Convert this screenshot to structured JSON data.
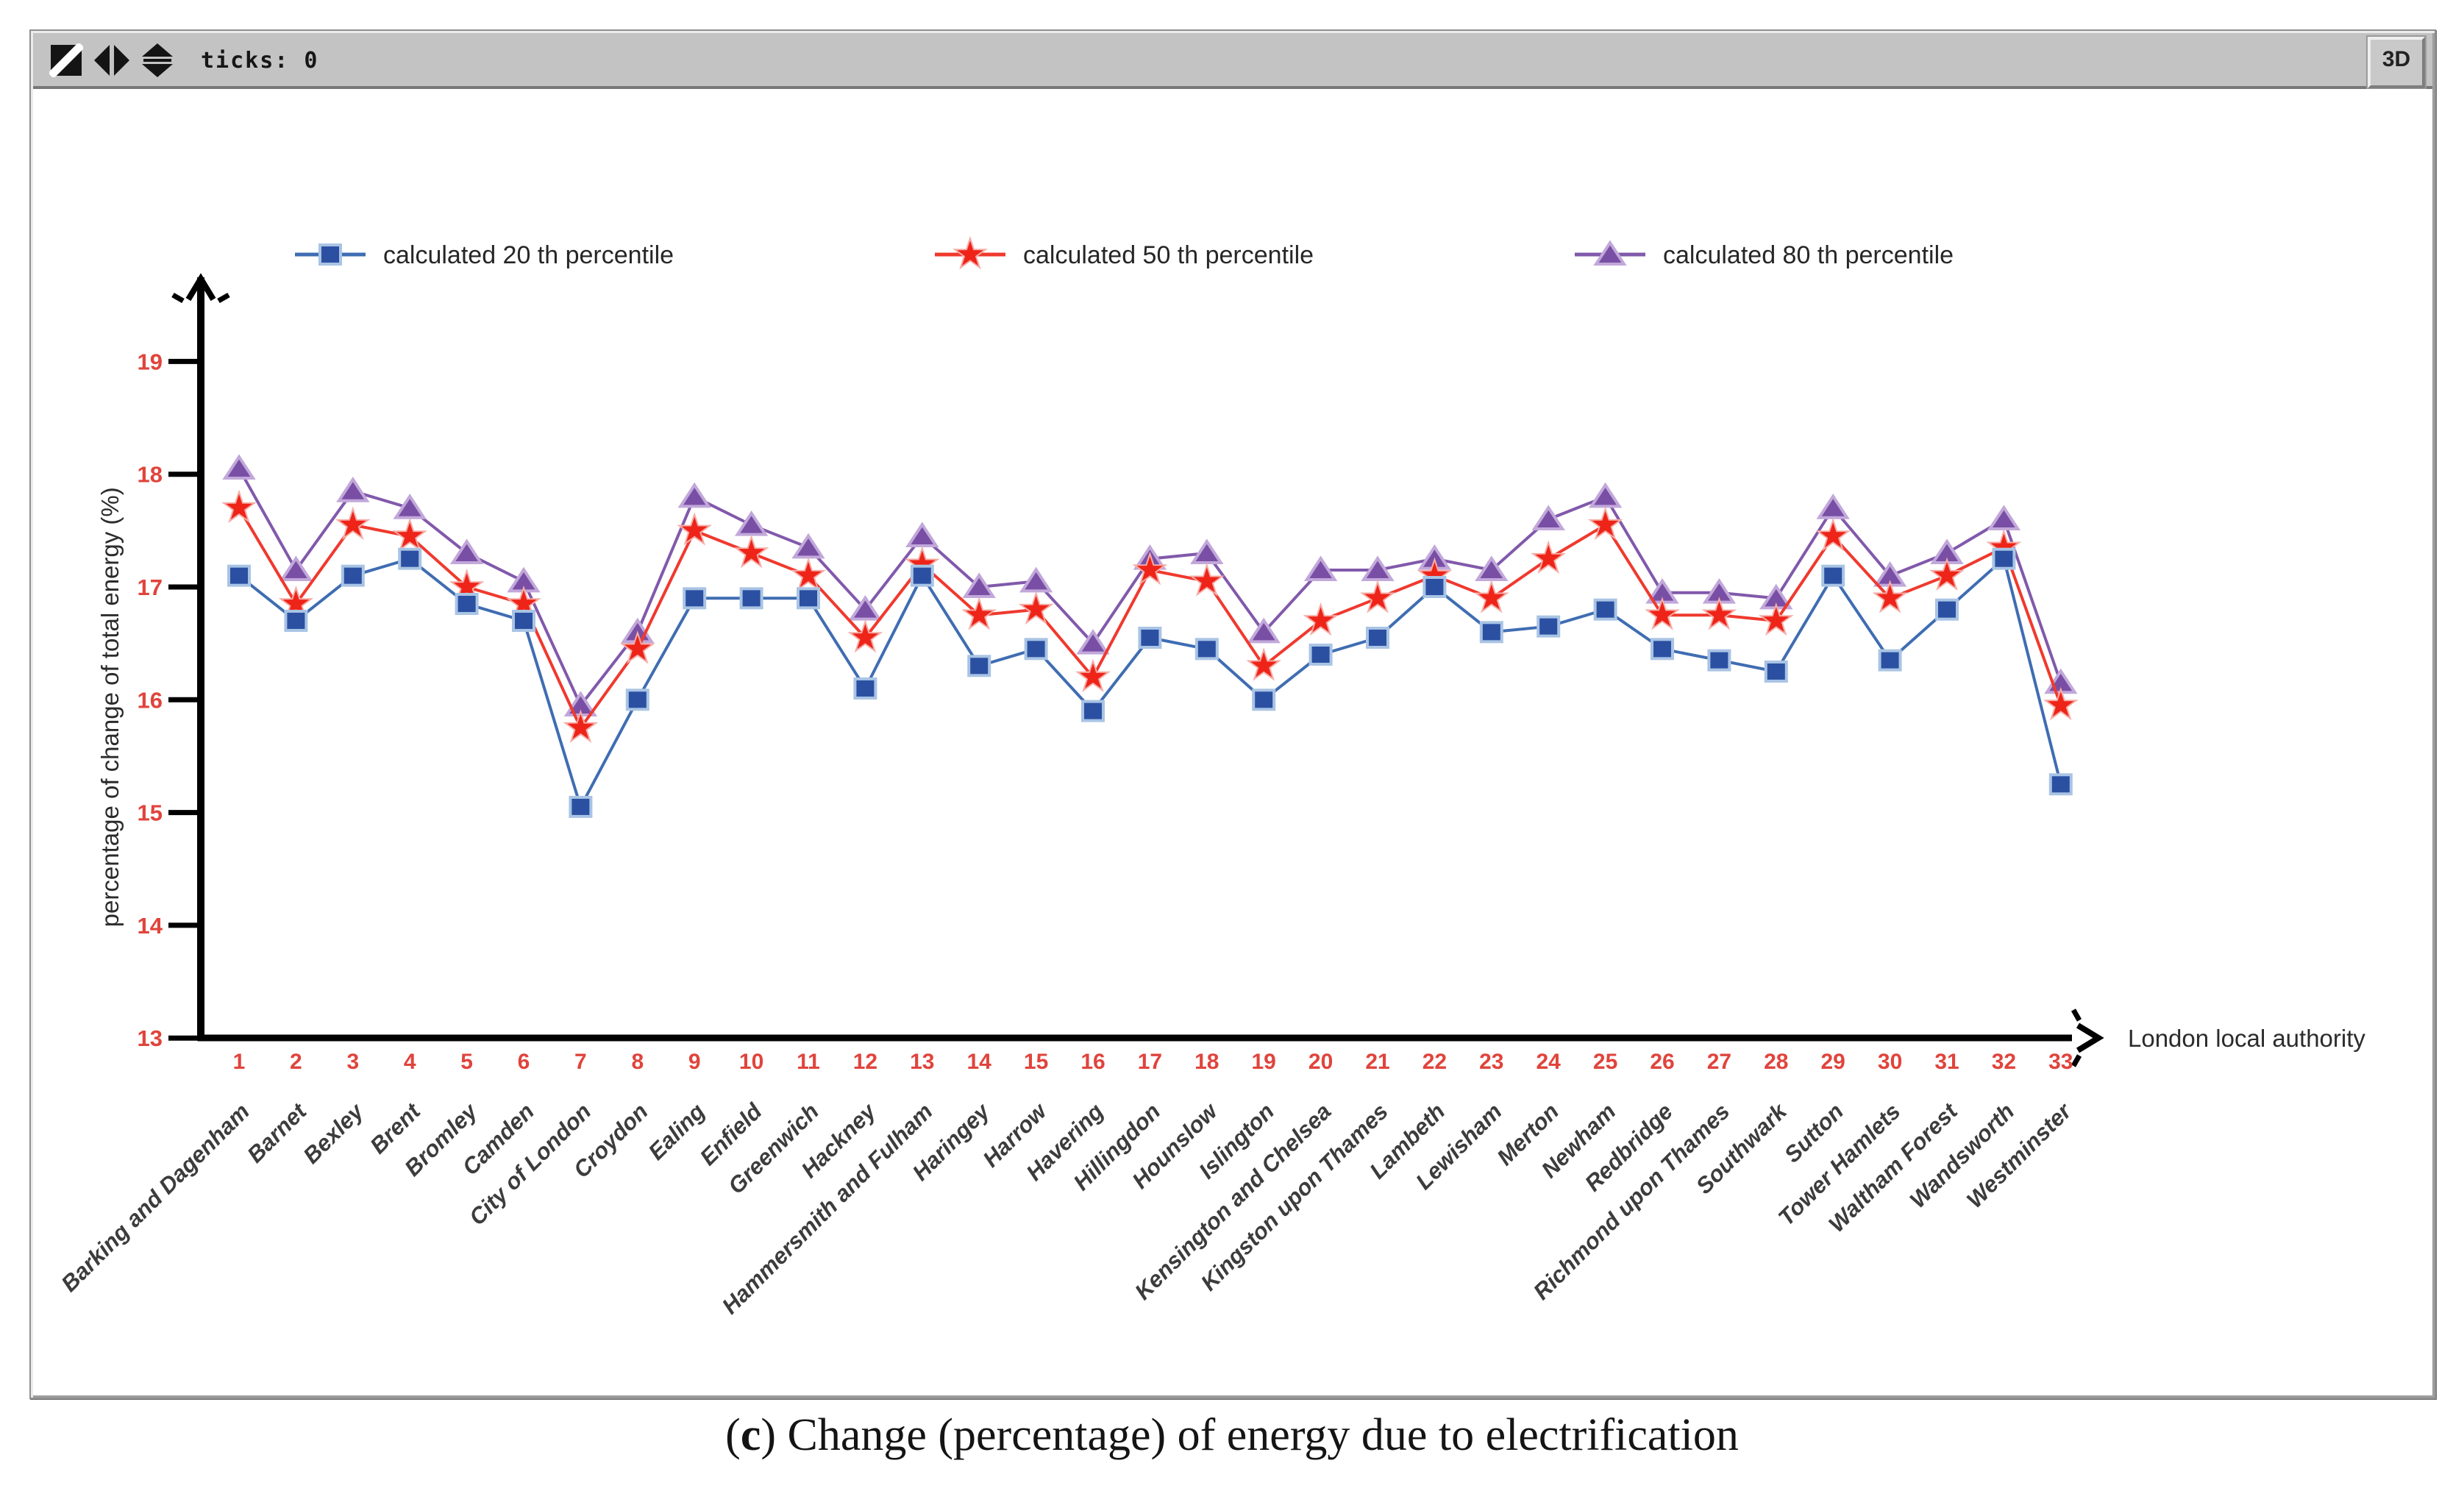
{
  "toolbar": {
    "ticks_label": "ticks: 0",
    "button_3d_label": "3D",
    "icons": [
      "diagonal-split-square",
      "horizontal-spread-arrows",
      "vertical-spread-arrows"
    ]
  },
  "caption": {
    "full": "(c) Change (percentage) of energy due to electrification",
    "open": "(",
    "letter": "c",
    "rest": ") Change (percentage) of energy due to electrification"
  },
  "chart_data": {
    "type": "line",
    "title": "",
    "xlabel": "London local authority",
    "ylabel": "percentage of change of total energy (%)",
    "ylim": [
      13,
      19
    ],
    "yticks": [
      19,
      18,
      17,
      16,
      15,
      14,
      13
    ],
    "grid": false,
    "legend_position": "top",
    "axis_color": "#000000",
    "tick_label_color": "#e0443c",
    "category_label_color": "#3c3c3c",
    "x_tick_numbers": [
      1,
      2,
      3,
      4,
      5,
      6,
      7,
      8,
      9,
      10,
      11,
      12,
      13,
      14,
      15,
      16,
      17,
      18,
      19,
      20,
      21,
      22,
      23,
      24,
      25,
      26,
      27,
      28,
      29,
      30,
      31,
      32,
      33
    ],
    "categories": [
      "Barking and Dagenham",
      "Barnet",
      "Bexley",
      "Brent",
      "Bromley",
      "Camden",
      "City of London",
      "Croydon",
      "Ealing",
      "Enfield",
      "Greenwich",
      "Hackney",
      "Hammersmith and Fulham",
      "Haringey",
      "Harrow",
      "Havering",
      "Hillingdon",
      "Hounslow",
      "Islington",
      "Kensington and Chelsea",
      "Kingston upon Thames",
      "Lambeth",
      "Lewisham",
      "Merton",
      "Newham",
      "Redbridge",
      "Richmond upon Thames",
      "Southwark",
      "Sutton",
      "Tower Hamlets",
      "Waltham Forest",
      "Wandsworth",
      "Westminster"
    ],
    "series": [
      {
        "name": "calculated 20 th percentile",
        "marker": "square",
        "color": "#2b50a2",
        "line_color": "#3f6db2",
        "halo": "#a9c4e4",
        "values": [
          17.1,
          16.7,
          17.1,
          17.25,
          16.85,
          16.7,
          15.05,
          16.0,
          16.9,
          16.9,
          16.9,
          16.1,
          17.1,
          16.3,
          16.45,
          15.9,
          16.55,
          16.45,
          16.0,
          16.4,
          16.55,
          17.0,
          16.6,
          16.65,
          16.8,
          16.45,
          16.35,
          16.25,
          17.1,
          16.35,
          16.8,
          17.25,
          15.25
        ]
      },
      {
        "name": "calculated 50 th percentile",
        "marker": "star",
        "color": "#ee2419",
        "line_color": "#f0392e",
        "halo": "#f6aca6",
        "values": [
          17.7,
          16.85,
          17.55,
          17.45,
          17.0,
          16.85,
          15.75,
          16.45,
          17.5,
          17.3,
          17.1,
          16.55,
          17.2,
          16.75,
          16.8,
          16.2,
          17.15,
          17.05,
          16.3,
          16.7,
          16.9,
          17.1,
          16.9,
          17.25,
          17.55,
          16.75,
          16.75,
          16.7,
          17.45,
          16.9,
          17.1,
          17.35,
          15.95
        ]
      },
      {
        "name": "calculated 80 th percentile",
        "marker": "triangle",
        "color": "#794fa5",
        "line_color": "#8159ab",
        "halo": "#c2a8da",
        "values": [
          18.05,
          17.15,
          17.85,
          17.7,
          17.3,
          17.05,
          15.95,
          16.6,
          17.8,
          17.55,
          17.35,
          16.8,
          17.45,
          17.0,
          17.05,
          16.5,
          17.25,
          17.3,
          16.6,
          17.15,
          17.15,
          17.25,
          17.15,
          17.6,
          17.8,
          16.95,
          16.95,
          16.9,
          17.7,
          17.1,
          17.3,
          17.6,
          16.15
        ]
      }
    ]
  }
}
